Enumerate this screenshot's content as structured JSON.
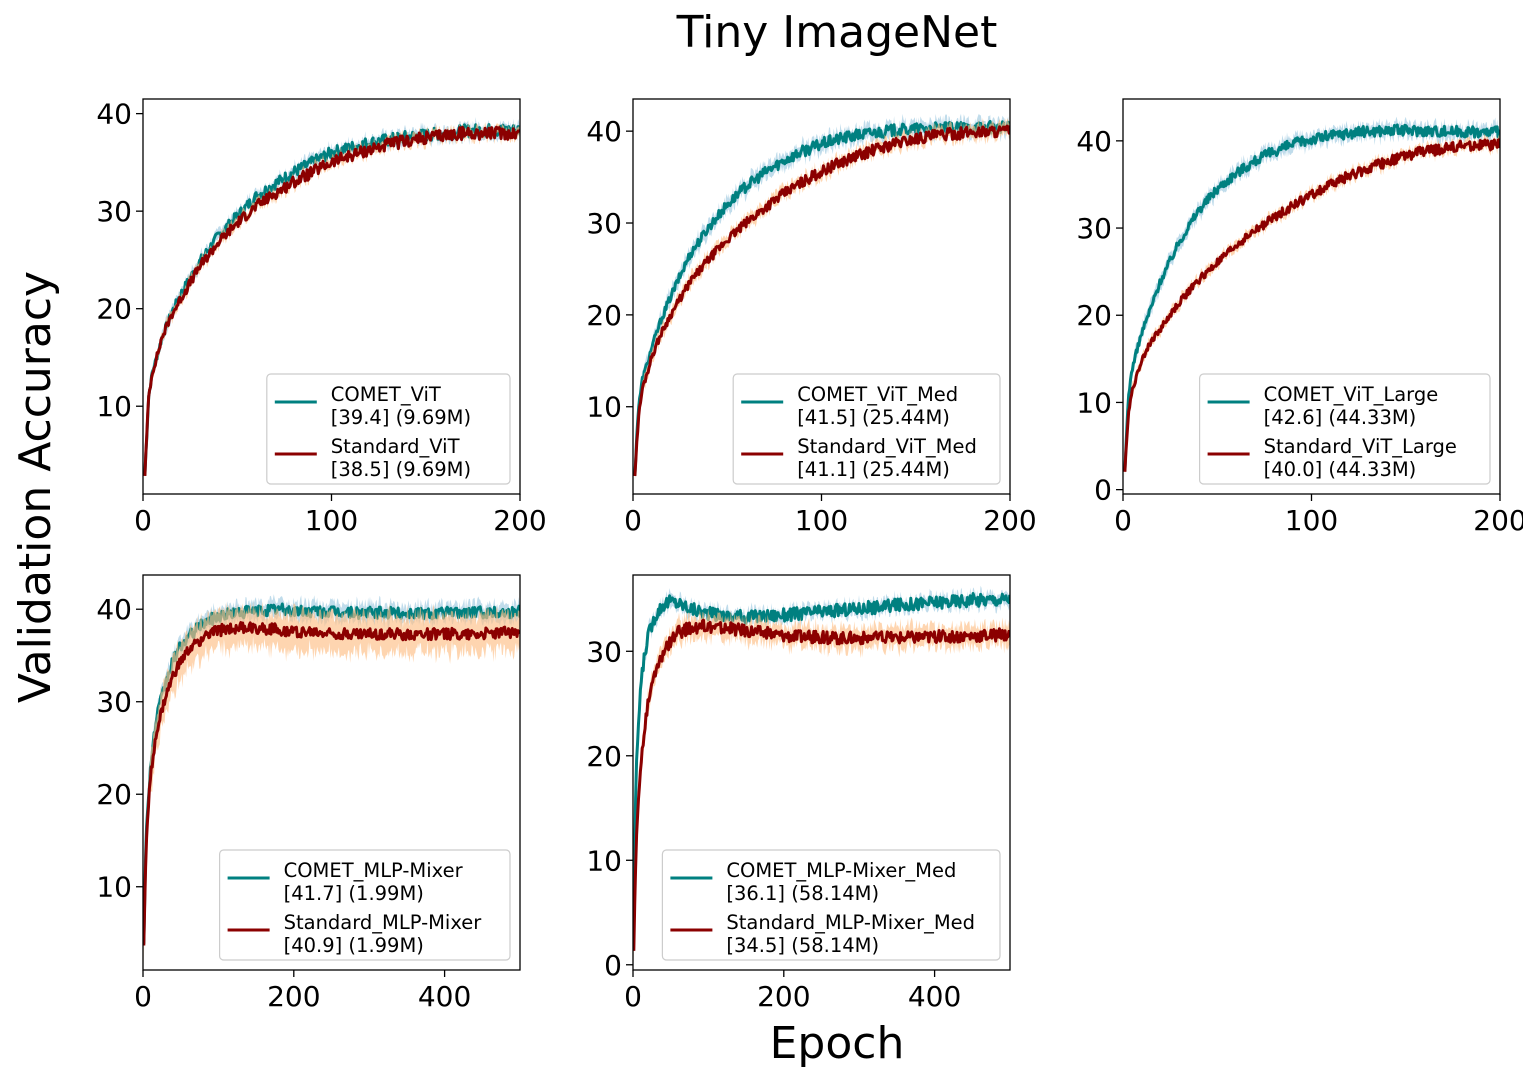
{
  "figure": {
    "title": "Tiny ImageNet",
    "xlabel": "Epoch",
    "ylabel": "Validation Accuracy",
    "colors": {
      "comet": "#008080",
      "standard": "#8b0000",
      "comet_band": "#9ecae1",
      "standard_band": "#fdbe85"
    }
  },
  "chart_data": [
    {
      "type": "line",
      "xlim": [
        0,
        200
      ],
      "ylim": [
        1,
        41.5
      ],
      "xticks": [
        0,
        100,
        200
      ],
      "yticks": [
        10,
        20,
        30,
        40
      ],
      "legend_position": "lower right",
      "series": [
        {
          "name": "COMET_ViT",
          "detail": "[39.4] (9.69M)",
          "color": "#008080",
          "x": [
            1,
            2,
            3,
            5,
            8,
            10,
            15,
            20,
            30,
            40,
            50,
            60,
            70,
            80,
            90,
            100,
            110,
            120,
            130,
            140,
            150,
            160,
            170,
            180,
            190,
            200
          ],
          "y": [
            3,
            7,
            11,
            13.5,
            15.5,
            17,
            19.5,
            21.5,
            24.8,
            27.5,
            29.5,
            31.5,
            32.8,
            34,
            35,
            36,
            36.5,
            37,
            37.3,
            37.6,
            37.8,
            38,
            38.2,
            38.3,
            38.3,
            38.3
          ],
          "band": 0.6
        },
        {
          "name": "Standard_ViT",
          "detail": "[38.5] (9.69M)",
          "color": "#8b0000",
          "x": [
            1,
            2,
            3,
            5,
            8,
            10,
            15,
            20,
            30,
            40,
            50,
            60,
            70,
            80,
            90,
            100,
            110,
            120,
            130,
            140,
            150,
            160,
            170,
            180,
            190,
            200
          ],
          "y": [
            3,
            7,
            11,
            13.5,
            15.5,
            17,
            19.3,
            21,
            24.3,
            26.8,
            28.8,
            30.5,
            31.8,
            33,
            34,
            35,
            35.7,
            36.3,
            36.8,
            37.2,
            37.5,
            37.8,
            38,
            38,
            38,
            38
          ],
          "band": 0.5
        }
      ]
    },
    {
      "type": "line",
      "xlim": [
        0,
        200
      ],
      "ylim": [
        0.5,
        43.5
      ],
      "xticks": [
        0,
        100,
        200
      ],
      "yticks": [
        10,
        20,
        30,
        40
      ],
      "legend_position": "lower right",
      "series": [
        {
          "name": "COMET_ViT_Med",
          "detail": "[41.5] (25.44M)",
          "color": "#008080",
          "x": [
            1,
            2,
            3,
            5,
            8,
            10,
            15,
            20,
            30,
            40,
            50,
            60,
            70,
            80,
            90,
            100,
            110,
            120,
            130,
            140,
            150,
            160,
            170,
            180,
            190,
            200
          ],
          "y": [
            2.5,
            7,
            10,
            13,
            15,
            16.5,
            19.5,
            22,
            26.5,
            29.5,
            32,
            34,
            35.5,
            36.8,
            37.8,
            38.6,
            39.2,
            39.6,
            39.9,
            40.1,
            40.2,
            40.3,
            40.3,
            40.4,
            40.4,
            40.4
          ],
          "band": 0.8
        },
        {
          "name": "Standard_ViT_Med",
          "detail": "[41.1] (25.44M)",
          "color": "#8b0000",
          "x": [
            1,
            2,
            3,
            5,
            8,
            10,
            15,
            20,
            30,
            40,
            50,
            60,
            70,
            80,
            90,
            100,
            110,
            120,
            130,
            140,
            150,
            160,
            170,
            180,
            190,
            200
          ],
          "y": [
            2.5,
            6,
            9,
            12,
            14,
            15.5,
            18,
            20,
            23.5,
            26,
            28.2,
            30,
            31.7,
            33.2,
            34.5,
            35.6,
            36.6,
            37.4,
            38.1,
            38.7,
            39.2,
            39.5,
            39.7,
            39.9,
            40,
            40
          ],
          "band": 0.7
        }
      ]
    },
    {
      "type": "line",
      "xlim": [
        0,
        200
      ],
      "ylim": [
        -0.5,
        44.8
      ],
      "xticks": [
        0,
        100,
        200
      ],
      "yticks": [
        0,
        10,
        20,
        30,
        40
      ],
      "legend_position": "lower right",
      "series": [
        {
          "name": "COMET_ViT_Large",
          "detail": "[42.6] (44.33M)",
          "color": "#008080",
          "x": [
            1,
            2,
            3,
            5,
            8,
            10,
            15,
            20,
            30,
            40,
            50,
            60,
            70,
            80,
            90,
            100,
            110,
            120,
            130,
            140,
            150,
            160,
            170,
            180,
            190,
            200
          ],
          "y": [
            2,
            7,
            11,
            14,
            16.5,
            18,
            21,
            24,
            28.5,
            32,
            34.5,
            36.3,
            37.7,
            38.8,
            39.6,
            40.2,
            40.6,
            40.9,
            41.1,
            41.2,
            41.2,
            41.2,
            41.1,
            41.1,
            41,
            41
          ],
          "band": 0.8
        },
        {
          "name": "Standard_ViT_Large",
          "detail": "[40.0] (44.33M)",
          "color": "#8b0000",
          "x": [
            1,
            2,
            3,
            5,
            8,
            10,
            15,
            20,
            30,
            40,
            50,
            60,
            70,
            80,
            90,
            100,
            110,
            120,
            130,
            140,
            150,
            160,
            170,
            180,
            190,
            200
          ],
          "y": [
            2,
            6,
            9,
            11.5,
            13.5,
            15,
            17,
            18.5,
            21.5,
            24,
            26,
            28,
            29.7,
            31.2,
            32.6,
            33.8,
            35,
            36,
            36.8,
            37.6,
            38.3,
            38.8,
            39.1,
            39.4,
            39.5,
            39.5
          ],
          "band": 0.6
        }
      ]
    },
    {
      "type": "line",
      "xlim": [
        0,
        500
      ],
      "ylim": [
        1,
        43.7
      ],
      "xticks": [
        0,
        200,
        400
      ],
      "yticks": [
        10,
        20,
        30,
        40
      ],
      "legend_position": "lower right",
      "series": [
        {
          "name": "COMET_MLP-Mixer",
          "detail": "[41.7] (1.99M)",
          "color": "#008080",
          "x": [
            1,
            3,
            5,
            10,
            15,
            20,
            30,
            40,
            50,
            60,
            80,
            100,
            120,
            150,
            180,
            200,
            250,
            300,
            350,
            400,
            450,
            500
          ],
          "y": [
            4,
            12,
            17,
            23,
            26.5,
            29,
            32,
            34.5,
            36,
            37,
            38.5,
            39.3,
            39.6,
            39.8,
            40,
            39.8,
            39.7,
            39.6,
            39.6,
            39.6,
            39.7,
            39.7
          ],
          "band": 0.9
        },
        {
          "name": "Standard_MLP-Mixer",
          "detail": "[40.9] (1.99M)",
          "color": "#8b0000",
          "x": [
            1,
            3,
            5,
            10,
            15,
            20,
            30,
            40,
            50,
            60,
            80,
            100,
            120,
            150,
            180,
            200,
            250,
            300,
            350,
            400,
            450,
            500
          ],
          "y": [
            3.5,
            11,
            16,
            22,
            25,
            27.5,
            30.5,
            32.8,
            34.3,
            35.5,
            37,
            37.7,
            38,
            38,
            37.8,
            37.6,
            37.4,
            37.3,
            37.3,
            37.3,
            37.4,
            37.5
          ],
          "band": 2.0
        }
      ]
    },
    {
      "type": "line",
      "xlim": [
        0,
        500
      ],
      "ylim": [
        -0.5,
        37.3
      ],
      "xticks": [
        0,
        200,
        400
      ],
      "yticks": [
        0,
        10,
        20,
        30
      ],
      "legend_position": "lower right",
      "series": [
        {
          "name": "COMET_MLP-Mixer_Med",
          "detail": "[36.1] (58.14M)",
          "color": "#008080",
          "x": [
            1,
            3,
            5,
            10,
            15,
            20,
            30,
            40,
            50,
            60,
            80,
            100,
            120,
            150,
            180,
            200,
            250,
            300,
            350,
            400,
            450,
            500
          ],
          "y": [
            5,
            14,
            20,
            26.5,
            29.5,
            31.5,
            33.5,
            34.5,
            34.8,
            34.6,
            34,
            33.6,
            33.4,
            33.3,
            33.4,
            33.5,
            33.8,
            34.1,
            34.4,
            34.7,
            34.9,
            35
          ],
          "band": 0.6
        },
        {
          "name": "Standard_MLP-Mixer_Med",
          "detail": "[34.5] (58.14M)",
          "color": "#8b0000",
          "x": [
            1,
            3,
            5,
            10,
            15,
            20,
            30,
            40,
            50,
            60,
            80,
            100,
            120,
            150,
            180,
            200,
            250,
            300,
            350,
            400,
            450,
            500
          ],
          "y": [
            1.5,
            8,
            13,
            19,
            22.5,
            25,
            28,
            29.8,
            31,
            31.8,
            32.3,
            32.4,
            32.2,
            32,
            31.7,
            31.5,
            31.3,
            31.3,
            31.3,
            31.4,
            31.5,
            31.6
          ],
          "band": 1.0
        }
      ]
    }
  ]
}
